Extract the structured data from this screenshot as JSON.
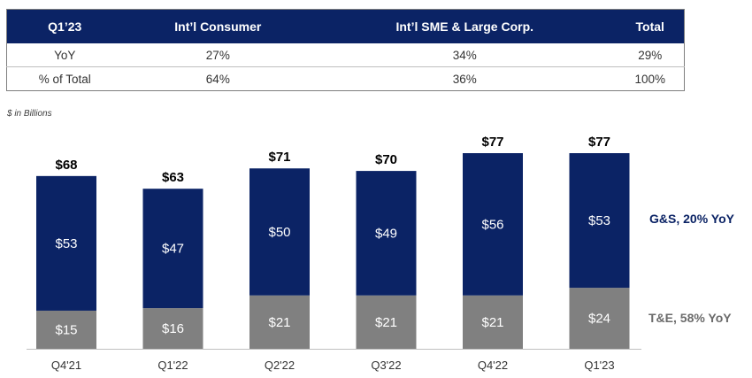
{
  "table": {
    "headers": [
      "Q1’23",
      "Int’l Consumer",
      "Int’l SME & Large Corp.",
      "Total"
    ],
    "rows": [
      [
        "YoY",
        "27%",
        "34%",
        "29%"
      ],
      [
        "% of Total",
        "64%",
        "36%",
        "100%"
      ]
    ]
  },
  "unit_note": "$ in Billions",
  "legend": {
    "gs": "G&S, 20% YoY",
    "te": "T&E, 58% YoY"
  },
  "colors": {
    "navy": "#0b2365",
    "gray": "#808080"
  },
  "chart_data": {
    "type": "bar",
    "stacked": true,
    "categories": [
      "Q4'21",
      "Q1'22",
      "Q2'22",
      "Q3'22",
      "Q4'22",
      "Q1'23"
    ],
    "series": [
      {
        "name": "T&E",
        "values": [
          15,
          16,
          21,
          21,
          21,
          24
        ],
        "labels": [
          "$15",
          "$16",
          "$21",
          "$21",
          "$21",
          "$24"
        ]
      },
      {
        "name": "G&S",
        "values": [
          53,
          47,
          50,
          49,
          56,
          53
        ],
        "labels": [
          "$53",
          "$47",
          "$50",
          "$49",
          "$56",
          "$53"
        ]
      }
    ],
    "totals": [
      68,
      63,
      71,
      70,
      77,
      77
    ],
    "total_labels": [
      "$68",
      "$63",
      "$71",
      "$70",
      "$77",
      "$77"
    ],
    "ylim": [
      0,
      80
    ],
    "xlabel": "",
    "ylabel": ""
  }
}
